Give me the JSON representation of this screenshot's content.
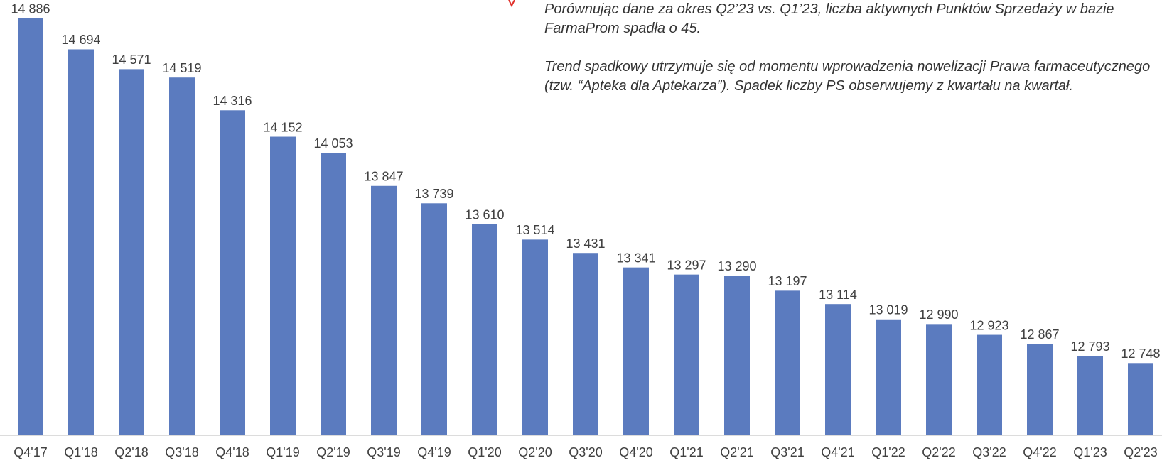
{
  "chart_data": {
    "type": "bar",
    "categories": [
      "Q4'17",
      "Q1'18",
      "Q2'18",
      "Q3'18",
      "Q4'18",
      "Q1'19",
      "Q2'19",
      "Q3'19",
      "Q4'19",
      "Q1'20",
      "Q2'20",
      "Q3'20",
      "Q4'20",
      "Q1'21",
      "Q2'21",
      "Q3'21",
      "Q4'21",
      "Q1'22",
      "Q2'22",
      "Q3'22",
      "Q4'22",
      "Q1'23",
      "Q2'23"
    ],
    "values": [
      14886,
      14694,
      14571,
      14519,
      14316,
      14152,
      14053,
      13847,
      13739,
      13610,
      13514,
      13431,
      13341,
      13297,
      13290,
      13197,
      13114,
      13019,
      12990,
      12923,
      12867,
      12793,
      12748
    ],
    "value_labels": [
      "14 886",
      "14 694",
      "14 571",
      "14 519",
      "14 316",
      "14 152",
      "14 053",
      "13 847",
      "13 739",
      "13 610",
      "13 514",
      "13 431",
      "13 341",
      "13 297",
      "13 290",
      "13 197",
      "13 114",
      "13 019",
      "12 990",
      "12 923",
      "12 867",
      "12 793",
      "12 748"
    ],
    "color": "#5b7bbf",
    "ylim": [
      12300,
      15000
    ],
    "annotations": [
      "Porównując dane za okres Q2’23 vs. Q1’23, liczba aktywnych Punktów Sprzedaży w bazie FarmaProm spadła o 45.",
      "Trend spadkowy utrzymuje się od momentu wprowadzenia nowelizacji Prawa farmaceutycznego (tzw. “Apteka dla Aptekarza”). Spadek liczby PS obserwujemy z kwartału na kwartał."
    ]
  }
}
